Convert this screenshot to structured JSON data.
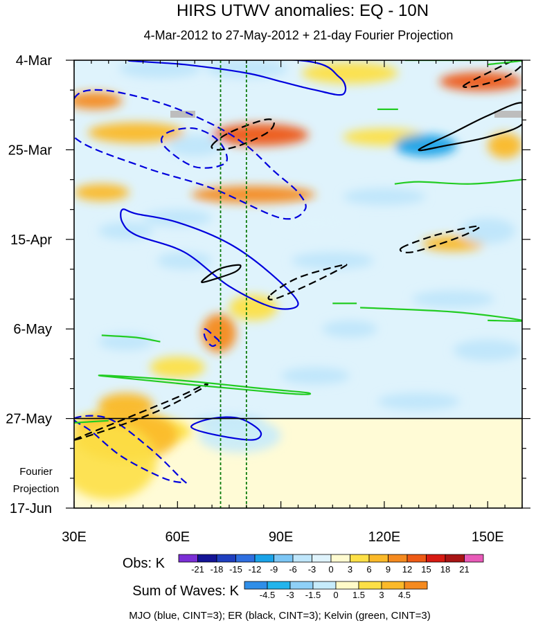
{
  "chart_data": {
    "type": "heatmap",
    "title": "HIRS UTWV anomalies: EQ - 10N",
    "subtitle": "4-Mar-2012 to 27-May-2012 + 21-day Fourier Projection",
    "x_axis": {
      "range": [
        30,
        160
      ],
      "ticks": [
        {
          "value": 30,
          "label": "30E"
        },
        {
          "value": 60,
          "label": "60E"
        },
        {
          "value": 90,
          "label": "90E"
        },
        {
          "value": 120,
          "label": "120E"
        },
        {
          "value": 150,
          "label": "150E"
        }
      ]
    },
    "y_axis": {
      "range_days": [
        0,
        105
      ],
      "ticks": [
        {
          "day": 0,
          "label": "4-Mar"
        },
        {
          "day": 21,
          "label": "25-Mar"
        },
        {
          "day": 42,
          "label": "15-Apr"
        },
        {
          "day": 63,
          "label": "6-May"
        },
        {
          "day": 84,
          "label": "27-May"
        },
        {
          "day": 105,
          "label": "17-Jun"
        }
      ]
    },
    "projection_start_day": 84,
    "projection_label": [
      "Fourier",
      "Projection"
    ],
    "reference_longitudes": [
      72.5,
      80
    ],
    "obs_colorbar": {
      "label": "Obs: K",
      "levels": [
        "-21",
        "-18",
        "-15",
        "-12",
        "-9",
        "-6",
        "-3",
        "0",
        "3",
        "6",
        "9",
        "12",
        "15",
        "18",
        "21"
      ],
      "colors": [
        "#7b2fd6",
        "#141496",
        "#1f3fbf",
        "#2f6fe0",
        "#1aa3e8",
        "#7cc6f5",
        "#bfe6fb",
        "#dff3fc",
        "#fffbd0",
        "#fde047",
        "#fbb929",
        "#f58a1f",
        "#ee5a15",
        "#d71a12",
        "#a81414",
        "#e85ab8"
      ]
    },
    "waves_colorbar": {
      "label": "Sum of Waves: K",
      "levels": [
        "-4.5",
        "-3",
        "-1.5",
        "0",
        "1.5",
        "3",
        "4.5"
      ],
      "colors": [
        "#2f8ee8",
        "#22b4ec",
        "#8fd0f7",
        "#c6ebfb",
        "#fffac8",
        "#fde047",
        "#fbb929",
        "#f58a1f"
      ]
    },
    "footnote": "MJO (blue, CINT=3); ER (black, CINT=3); Kelvin (green, CINT=3)",
    "obs_anomaly_blobs": [
      {
        "lon": 36,
        "day": 9.5,
        "rlon": 8,
        "rday": 2,
        "k": 10
      },
      {
        "lon": 84,
        "day": 17.5,
        "rlon": 14,
        "rday": 2.6,
        "k": 13
      },
      {
        "lon": 48,
        "day": 17,
        "rlon": 14,
        "rday": 2.4,
        "k": 7
      },
      {
        "lon": 120,
        "day": 18,
        "rlon": 12,
        "rday": 2,
        "k": 5
      },
      {
        "lon": 148,
        "day": 5,
        "rlon": 12,
        "rday": 2.2,
        "k": 12
      },
      {
        "lon": 155,
        "day": 20,
        "rlon": 5,
        "rday": 3,
        "k": 7
      },
      {
        "lon": 82,
        "day": 31.5,
        "rlon": 18,
        "rday": 2,
        "k": 10
      },
      {
        "lon": 38,
        "day": 31,
        "rlon": 8,
        "rday": 2,
        "k": 8
      },
      {
        "lon": 140,
        "day": 43,
        "rlon": 9,
        "rday": 1.8,
        "k": 6
      },
      {
        "lon": 72,
        "day": 64,
        "rlon": 5,
        "rday": 4.5,
        "k": 9
      },
      {
        "lon": 82,
        "day": 58,
        "rlon": 7,
        "rday": 3,
        "k": 5
      },
      {
        "lon": 45,
        "day": 81,
        "rlon": 8,
        "rday": 3,
        "k": 7
      },
      {
        "lon": 37,
        "day": 85.5,
        "rlon": 7,
        "rday": 2.5,
        "k": 4
      },
      {
        "lon": 52,
        "day": 87,
        "rlon": 12,
        "rday": 3,
        "k": 4
      },
      {
        "lon": 110,
        "day": 3,
        "rlon": 14,
        "rday": 2.5,
        "k": 3
      },
      {
        "lon": 60,
        "day": 72,
        "rlon": 8,
        "rday": 2.5,
        "k": 4
      },
      {
        "lon": 65,
        "day": 20,
        "rlon": 8,
        "rday": 2.5,
        "k": -4
      },
      {
        "lon": 55,
        "day": 2,
        "rlon": 12,
        "rday": 2.2,
        "k": -6
      },
      {
        "lon": 80,
        "day": 2,
        "rlon": 12,
        "rday": 2.2,
        "k": -5
      },
      {
        "lon": 132,
        "day": 20,
        "rlon": 9,
        "rday": 2.6,
        "k": -10
      },
      {
        "lon": 120,
        "day": 32,
        "rlon": 12,
        "rday": 2,
        "k": -4
      },
      {
        "lon": 60,
        "day": 37,
        "rlon": 10,
        "rday": 2,
        "k": -5
      },
      {
        "lon": 100,
        "day": 38,
        "rlon": 10,
        "rday": 2,
        "k": -3
      },
      {
        "lon": 150,
        "day": 40,
        "rlon": 8,
        "rday": 3,
        "k": -4
      },
      {
        "lon": 45,
        "day": 40,
        "rlon": 8,
        "rday": 2,
        "k": -4
      },
      {
        "lon": 62,
        "day": 47,
        "rlon": 8,
        "rday": 2,
        "k": -5
      },
      {
        "lon": 105,
        "day": 47,
        "rlon": 12,
        "rday": 2,
        "k": -4
      },
      {
        "lon": 140,
        "day": 56,
        "rlon": 12,
        "rday": 2,
        "k": -5
      },
      {
        "lon": 110,
        "day": 63,
        "rlon": 8,
        "rday": 2,
        "k": -4
      },
      {
        "lon": 150,
        "day": 68,
        "rlon": 10,
        "rday": 2.5,
        "k": -5
      },
      {
        "lon": 100,
        "day": 74,
        "rlon": 10,
        "rday": 2,
        "k": -4
      },
      {
        "lon": 130,
        "day": 80,
        "rlon": 12,
        "rday": 2,
        "k": -4
      },
      {
        "lon": 75,
        "day": 85,
        "rlon": 10,
        "rday": 1.8,
        "k": -4
      },
      {
        "lon": 45,
        "day": 66,
        "rlon": 8,
        "rday": 2,
        "k": -4
      }
    ],
    "projection_blobs": [
      {
        "lon": 45,
        "day": 88,
        "rlon": 15,
        "rday": 6,
        "k": 3.5
      },
      {
        "lon": 40,
        "day": 94,
        "rlon": 14,
        "rday": 9,
        "k": 1.5
      },
      {
        "lon": 78,
        "day": 88,
        "rlon": 12,
        "rday": 4,
        "k": -1.5
      }
    ],
    "wave_contours": [
      {
        "wave": "MJO",
        "color": "#0000dd",
        "dashed": false,
        "points": [
          [
            47,
            0
          ],
          [
            62,
            1
          ],
          [
            80,
            3
          ],
          [
            90,
            5
          ],
          [
            100,
            7
          ],
          [
            108,
            8
          ],
          [
            107,
            4
          ],
          [
            95,
            0
          ]
        ]
      },
      {
        "wave": "MJO",
        "color": "#0000dd",
        "dashed": true,
        "points": [
          [
            30,
            9
          ],
          [
            38,
            7
          ],
          [
            55,
            10
          ],
          [
            70,
            15
          ],
          [
            80,
            20
          ],
          [
            88,
            26
          ],
          [
            95,
            31
          ],
          [
            97,
            35
          ],
          [
            90,
            37
          ],
          [
            70,
            30
          ],
          [
            50,
            25
          ],
          [
            30,
            18
          ]
        ]
      },
      {
        "wave": "MJO",
        "color": "#0000dd",
        "dashed": true,
        "points": [
          [
            57,
            17
          ],
          [
            65,
            16
          ],
          [
            72,
            19
          ],
          [
            74,
            24
          ],
          [
            65,
            25
          ],
          [
            56,
            20
          ]
        ]
      },
      {
        "wave": "MJO",
        "color": "#0000dd",
        "dashed": false,
        "points": [
          [
            44,
            35
          ],
          [
            48,
            36
          ],
          [
            60,
            38
          ],
          [
            75,
            43
          ],
          [
            87,
            50
          ],
          [
            95,
            57
          ],
          [
            88,
            58
          ],
          [
            75,
            53
          ],
          [
            62,
            45
          ],
          [
            48,
            41
          ],
          [
            44,
            38
          ]
        ]
      },
      {
        "wave": "MJO",
        "color": "#0000dd",
        "dashed": true,
        "points": [
          [
            68,
            63
          ],
          [
            71,
            65
          ],
          [
            72,
            66
          ],
          [
            70,
            67
          ],
          [
            68,
            65
          ]
        ]
      },
      {
        "wave": "MJO",
        "color": "#0000dd",
        "dashed": true,
        "points": [
          [
            30,
            84
          ],
          [
            40,
            84
          ],
          [
            52,
            91
          ],
          [
            61,
            98
          ],
          [
            62,
            99
          ],
          [
            56,
            98
          ],
          [
            44,
            93
          ],
          [
            35,
            87
          ]
        ]
      },
      {
        "wave": "MJO",
        "color": "#0000dd",
        "dashed": false,
        "points": [
          [
            64,
            86
          ],
          [
            70,
            84
          ],
          [
            78,
            84
          ],
          [
            84,
            87
          ],
          [
            82,
            89
          ],
          [
            72,
            88
          ]
        ]
      },
      {
        "wave": "ER",
        "color": "#000000",
        "dashed": true,
        "points": [
          [
            70,
            20
          ],
          [
            75,
            17
          ],
          [
            85,
            14
          ],
          [
            88,
            14.5
          ],
          [
            86,
            17
          ],
          [
            78,
            20
          ],
          [
            72,
            21
          ]
        ]
      },
      {
        "wave": "ER",
        "color": "#000000",
        "dashed": false,
        "points": [
          [
            130,
            21
          ],
          [
            140,
            17
          ],
          [
            150,
            13
          ],
          [
            160,
            10
          ],
          [
            160,
            15
          ],
          [
            150,
            18
          ],
          [
            138,
            20
          ]
        ]
      },
      {
        "wave": "ER",
        "color": "#000000",
        "dashed": true,
        "points": [
          [
            143,
            6
          ],
          [
            150,
            3
          ],
          [
            158,
            0
          ],
          [
            160,
            1
          ],
          [
            155,
            4
          ],
          [
            147,
            6
          ]
        ]
      },
      {
        "wave": "ER",
        "color": "#000000",
        "dashed": true,
        "points": [
          [
            125,
            44
          ],
          [
            135,
            41
          ],
          [
            146,
            39
          ],
          [
            147,
            39.5
          ],
          [
            140,
            42
          ],
          [
            128,
            45
          ]
        ]
      },
      {
        "wave": "ER",
        "color": "#000000",
        "dashed": false,
        "points": [
          [
            67,
            52
          ],
          [
            72,
            49
          ],
          [
            78,
            48
          ],
          [
            77,
            49.5
          ],
          [
            72,
            51
          ]
        ]
      },
      {
        "wave": "ER",
        "color": "#000000",
        "dashed": true,
        "points": [
          [
            87,
            55
          ],
          [
            95,
            51
          ],
          [
            108,
            48
          ],
          [
            107,
            49
          ],
          [
            97,
            53
          ],
          [
            88,
            56
          ]
        ]
      },
      {
        "wave": "ER",
        "color": "#000000",
        "dashed": true,
        "points": [
          [
            30,
            89
          ],
          [
            45,
            84
          ],
          [
            60,
            79
          ],
          [
            68,
            76
          ],
          [
            67,
            77
          ],
          [
            55,
            82
          ],
          [
            42,
            86
          ]
        ]
      },
      {
        "wave": "Kelvin",
        "color": "#22cc22",
        "dashed": false,
        "points": [
          [
            126,
            0
          ],
          [
            145,
            0
          ],
          [
            160,
            0
          ],
          [
            150,
            1
          ]
        ]
      },
      {
        "wave": "Kelvin",
        "color": "#22cc22",
        "dashed": false,
        "points": [
          [
            118,
            11.5
          ],
          [
            124,
            11.5
          ]
        ]
      },
      {
        "wave": "Kelvin",
        "color": "#22cc22",
        "dashed": false,
        "points": [
          [
            123,
            29
          ],
          [
            130,
            28.5
          ],
          [
            145,
            29
          ],
          [
            160,
            28
          ]
        ]
      },
      {
        "wave": "Kelvin",
        "color": "#22cc22",
        "dashed": false,
        "points": [
          [
            105,
            57
          ],
          [
            112,
            57
          ]
        ]
      },
      {
        "wave": "Kelvin",
        "color": "#22cc22",
        "dashed": false,
        "points": [
          [
            113,
            58
          ],
          [
            140,
            59
          ],
          [
            160,
            61
          ],
          [
            150,
            61
          ]
        ]
      },
      {
        "wave": "Kelvin",
        "color": "#22cc22",
        "dashed": false,
        "points": [
          [
            38,
            64.5
          ],
          [
            48,
            65
          ],
          [
            55,
            66
          ]
        ]
      },
      {
        "wave": "Kelvin",
        "color": "#22cc22",
        "dashed": false,
        "points": [
          [
            38,
            74
          ],
          [
            60,
            75
          ],
          [
            85,
            77
          ],
          [
            98,
            78
          ],
          [
            90,
            78
          ]
        ]
      },
      {
        "wave": "Kelvin",
        "color": "#22cc22",
        "dashed": false,
        "points": [
          [
            30,
            85
          ],
          [
            40,
            84.5
          ]
        ]
      }
    ]
  }
}
